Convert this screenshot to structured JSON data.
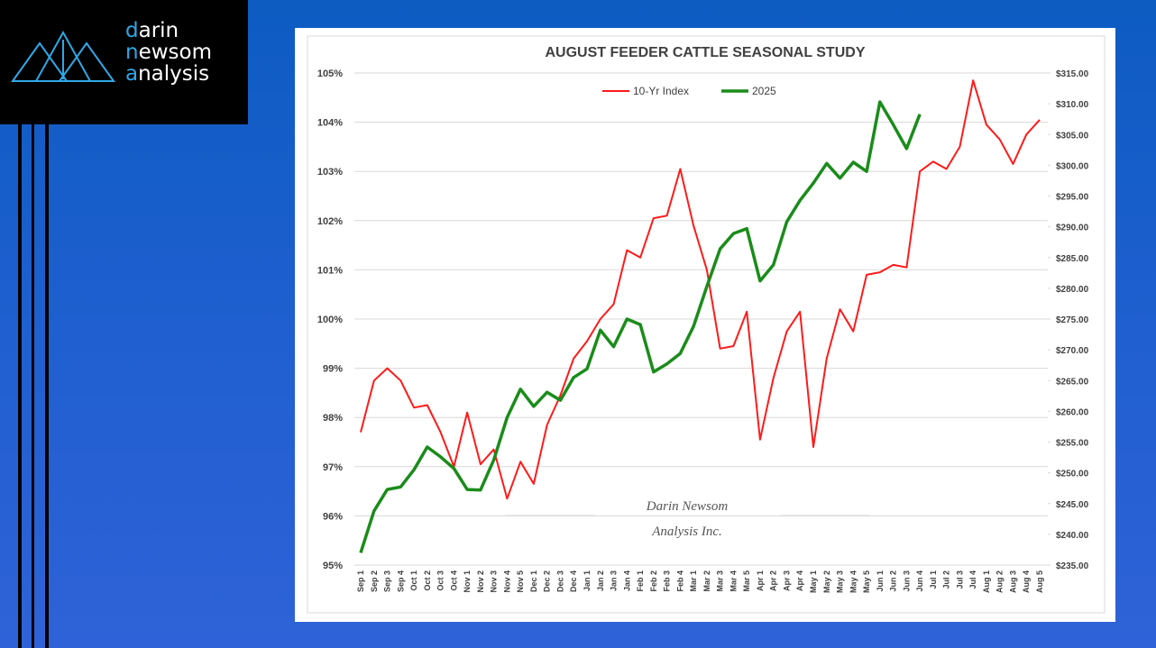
{
  "logo": {
    "lines": [
      "darin",
      "newsom",
      "analysis"
    ]
  },
  "chart_data": {
    "type": "line",
    "title": "AUGUST FEEDER CATTLE SEASONAL STUDY",
    "watermark": [
      "Darin Newsom",
      "Analysis Inc."
    ],
    "categories": [
      "Sep 1",
      "Sep 2",
      "Sep 3",
      "Sep 4",
      "Oct 1",
      "Oct 2",
      "Oct 3",
      "Oct 4",
      "Nov 1",
      "Nov 2",
      "Nov 3",
      "Nov 4",
      "Nov 5",
      "Dec 1",
      "Dec 2",
      "Dec 3",
      "Dec 4",
      "Jan 1",
      "Jan 2",
      "Jan 3",
      "Jan 4",
      "Feb 1",
      "Feb 2",
      "Feb 3",
      "Feb 4",
      "Mar 1",
      "Mar 2",
      "Mar 3",
      "Mar 4",
      "Mar 5",
      "Apr 1",
      "Apr 2",
      "Apr 3",
      "Apr 4",
      "May 1",
      "May 2",
      "May 3",
      "May 4",
      "May 5",
      "Jun 1",
      "Jun 2",
      "Jun 3",
      "Jun 4",
      "Jul 1",
      "Jul 2",
      "Jul 3",
      "Jul 4",
      "Aug 1",
      "Aug 2",
      "Aug 3",
      "Aug 4",
      "Aug 5"
    ],
    "series": [
      {
        "name": "10-Yr Index",
        "color": "#ff1a1a",
        "axis": "y",
        "values": [
          97.7,
          98.75,
          99.0,
          98.75,
          98.2,
          98.25,
          97.7,
          97.0,
          98.1,
          97.05,
          97.35,
          96.35,
          97.1,
          96.65,
          97.85,
          98.45,
          99.2,
          99.55,
          100.0,
          100.3,
          101.4,
          101.25,
          102.05,
          102.1,
          103.05,
          101.9,
          101.0,
          99.4,
          99.45,
          100.15,
          97.55,
          98.8,
          99.75,
          100.15,
          97.4,
          99.2,
          100.2,
          99.75,
          100.9,
          100.95,
          101.1,
          101.05,
          103.0,
          103.2,
          103.05,
          103.5,
          104.85,
          103.95,
          103.65,
          103.15,
          103.75,
          104.05
        ]
      },
      {
        "name": "2025",
        "color": "#1a8c1a",
        "axis": "y2",
        "values": [
          237.0,
          243.8,
          247.3,
          247.7,
          250.5,
          254.2,
          252.6,
          250.7,
          247.3,
          247.2,
          252.1,
          259.0,
          263.6,
          260.8,
          263.1,
          261.8,
          265.5,
          266.9,
          273.2,
          270.5,
          275.0,
          274.1,
          266.4,
          267.7,
          269.4,
          273.8,
          280.3,
          286.4,
          288.9,
          289.7,
          281.2,
          283.8,
          290.8,
          294.3,
          297.1,
          300.3,
          297.9,
          300.5,
          299.0,
          310.3,
          306.6,
          302.7,
          308.3,
          null,
          null,
          null,
          null,
          null,
          null,
          null,
          null,
          null
        ]
      }
    ],
    "ylim": [
      95,
      105
    ],
    "yticks": [
      {
        "value": 95,
        "label": "95%"
      },
      {
        "value": 96,
        "label": "96%"
      },
      {
        "value": 97,
        "label": "97%"
      },
      {
        "value": 98,
        "label": "98%"
      },
      {
        "value": 99,
        "label": "99%"
      },
      {
        "value": 100,
        "label": "100%"
      },
      {
        "value": 101,
        "label": "101%"
      },
      {
        "value": 102,
        "label": "102%"
      },
      {
        "value": 103,
        "label": "103%"
      },
      {
        "value": 104,
        "label": "104%"
      },
      {
        "value": 105,
        "label": "105%"
      }
    ],
    "y2lim": [
      235,
      315
    ],
    "y2ticks": [
      {
        "value": 235,
        "label": "$235.00"
      },
      {
        "value": 240,
        "label": "$240.00"
      },
      {
        "value": 245,
        "label": "$245.00"
      },
      {
        "value": 250,
        "label": "$250.00"
      },
      {
        "value": 255,
        "label": "$255.00"
      },
      {
        "value": 260,
        "label": "$260.00"
      },
      {
        "value": 265,
        "label": "$265.00"
      },
      {
        "value": 270,
        "label": "$270.00"
      },
      {
        "value": 275,
        "label": "$275.00"
      },
      {
        "value": 280,
        "label": "$280.00"
      },
      {
        "value": 285,
        "label": "$285.00"
      },
      {
        "value": 290,
        "label": "$290.00"
      },
      {
        "value": 295,
        "label": "$295.00"
      },
      {
        "value": 300,
        "label": "$300.00"
      },
      {
        "value": 305,
        "label": "$305.00"
      },
      {
        "value": 310,
        "label": "$310.00"
      },
      {
        "value": 315,
        "label": "$315.00"
      }
    ],
    "grid": true,
    "legend": "top"
  }
}
